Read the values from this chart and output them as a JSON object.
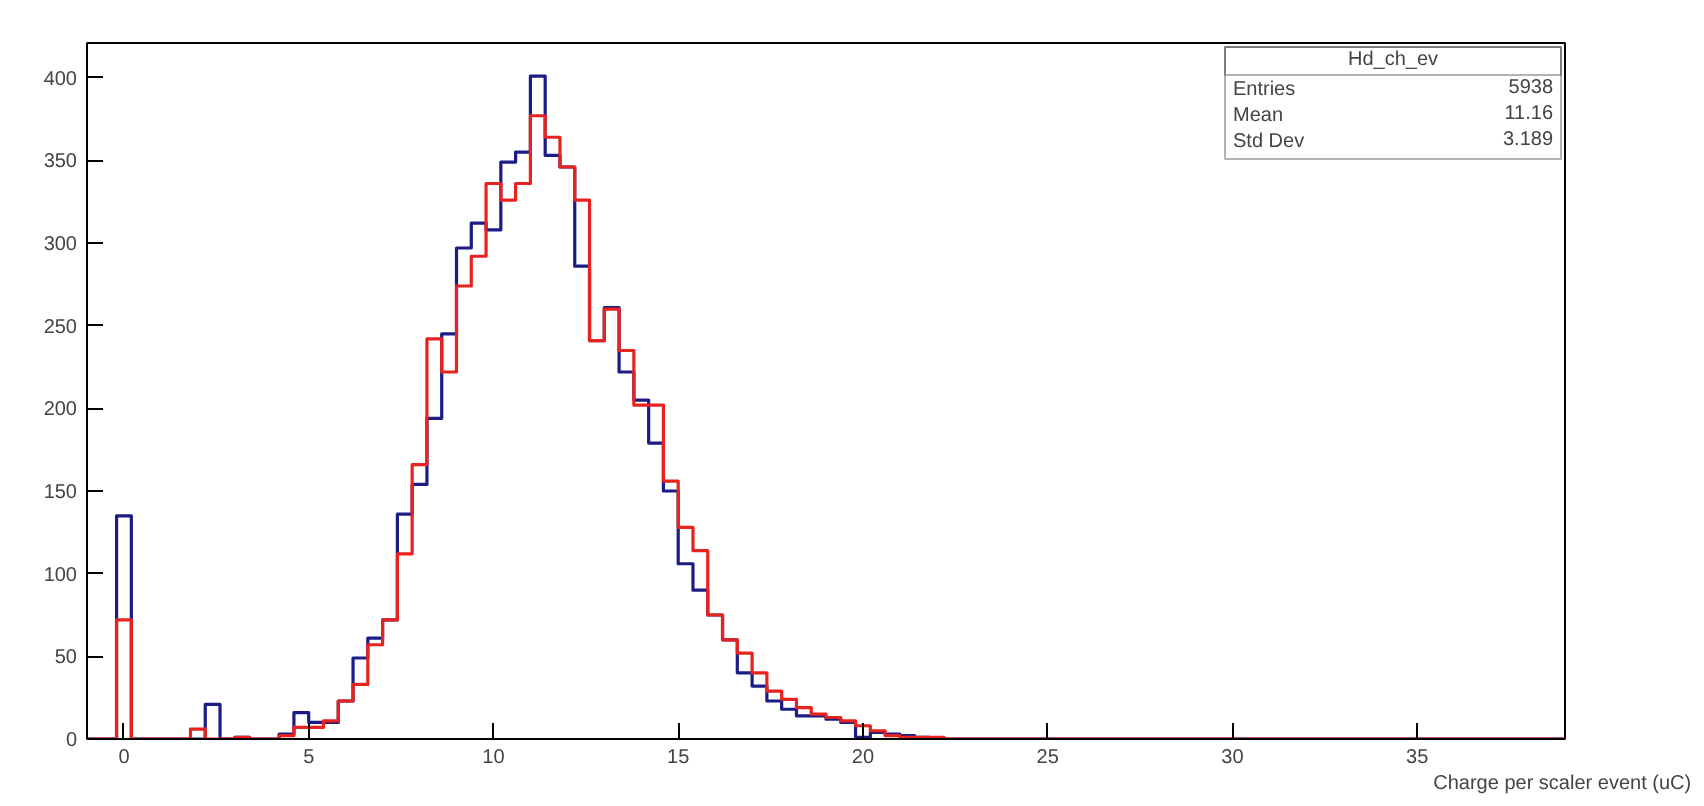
{
  "chart_data": {
    "type": "histogram",
    "xlabel": "Charge per scaler  event (uC)",
    "bins": [
      -1,
      -0.6,
      -0.2,
      0.2,
      0.6,
      1,
      1.4,
      1.8,
      2.2,
      2.6,
      3,
      3.4,
      3.8,
      4.2,
      4.6,
      5,
      5.4,
      5.8,
      6.2,
      6.6,
      7,
      7.4,
      7.8,
      8.2,
      8.6,
      9,
      9.4,
      9.8,
      10.2,
      10.6,
      11,
      11.4,
      11.8,
      12.2,
      12.6,
      13,
      13.4,
      13.8,
      14.2,
      14.6,
      15,
      15.4,
      15.8,
      16.2,
      16.6,
      17,
      17.4,
      17.8,
      18.2,
      18.6,
      19,
      19.4,
      19.8,
      20.2,
      20.6,
      21,
      21.4,
      21.8,
      22.2,
      22.6,
      23,
      23.4,
      23.8,
      24.2,
      24.6,
      25,
      25.4,
      25.8,
      26.2,
      26.6,
      27,
      27.4,
      27.8,
      28.2,
      28.6,
      29,
      29.4,
      29.8,
      30.2,
      30.6,
      31,
      31.4,
      31.8,
      32.2,
      32.6,
      33,
      33.4,
      33.8,
      34.2,
      34.6,
      35,
      35.4,
      35.8,
      36.2,
      36.6,
      37,
      37.4,
      37.8,
      38.2,
      38.6,
      39
    ],
    "series": [
      {
        "color": "#1c1c86",
        "values": [
          0,
          0,
          135,
          0,
          0,
          0,
          0,
          0,
          21,
          0,
          1,
          0,
          0,
          3,
          16,
          10,
          10,
          23,
          49,
          61,
          72,
          136,
          154,
          194,
          245,
          297,
          312,
          308,
          349,
          355,
          401,
          353,
          346,
          286,
          241,
          261,
          222,
          205,
          179,
          150,
          106,
          90,
          75,
          60,
          40,
          32,
          23,
          18,
          14,
          14,
          12,
          10,
          1,
          4,
          3,
          2,
          1,
          0,
          0,
          0,
          0,
          0,
          0,
          0,
          0,
          0,
          0,
          0,
          0,
          0,
          0,
          0,
          0,
          0,
          0,
          0,
          0,
          0,
          0,
          0,
          0,
          0,
          0,
          0,
          0,
          0,
          0,
          0,
          0,
          0,
          0,
          0,
          0,
          0,
          0,
          0,
          0,
          0,
          0,
          0
        ]
      },
      {
        "color": "#e8231f",
        "values": [
          0,
          0,
          72,
          0,
          0,
          0,
          0,
          6,
          0,
          0,
          1,
          0,
          0,
          2,
          7,
          7,
          11,
          23,
          33,
          57,
          72,
          112,
          166,
          242,
          222,
          274,
          292,
          336,
          326,
          336,
          377,
          364,
          346,
          326,
          241,
          260,
          235,
          202,
          202,
          156,
          128,
          114,
          75,
          60,
          52,
          40,
          29,
          24,
          19,
          15,
          13,
          11,
          8,
          5,
          2,
          1,
          1,
          1,
          0,
          0,
          0,
          0,
          0,
          0,
          0,
          0,
          0,
          0,
          0,
          0,
          0,
          0,
          0,
          0,
          0,
          0,
          0,
          0,
          0,
          0,
          0,
          0,
          0,
          0,
          0,
          0,
          0,
          0,
          0,
          0,
          0,
          0,
          0,
          0,
          0,
          0,
          0,
          0,
          0,
          0
        ]
      }
    ],
    "xlim": [
      -1,
      39
    ],
    "ylim": [
      0,
      421
    ],
    "xticks": [
      0,
      5,
      10,
      15,
      20,
      25,
      30,
      35
    ],
    "yticks": [
      0,
      50,
      100,
      150,
      200,
      250,
      300,
      350,
      400
    ],
    "grid": false,
    "annotations": [
      "Hd_ch_ev",
      "Entries",
      "5938",
      "Mean",
      "11.16",
      "Std Dev",
      "3.189"
    ]
  }
}
